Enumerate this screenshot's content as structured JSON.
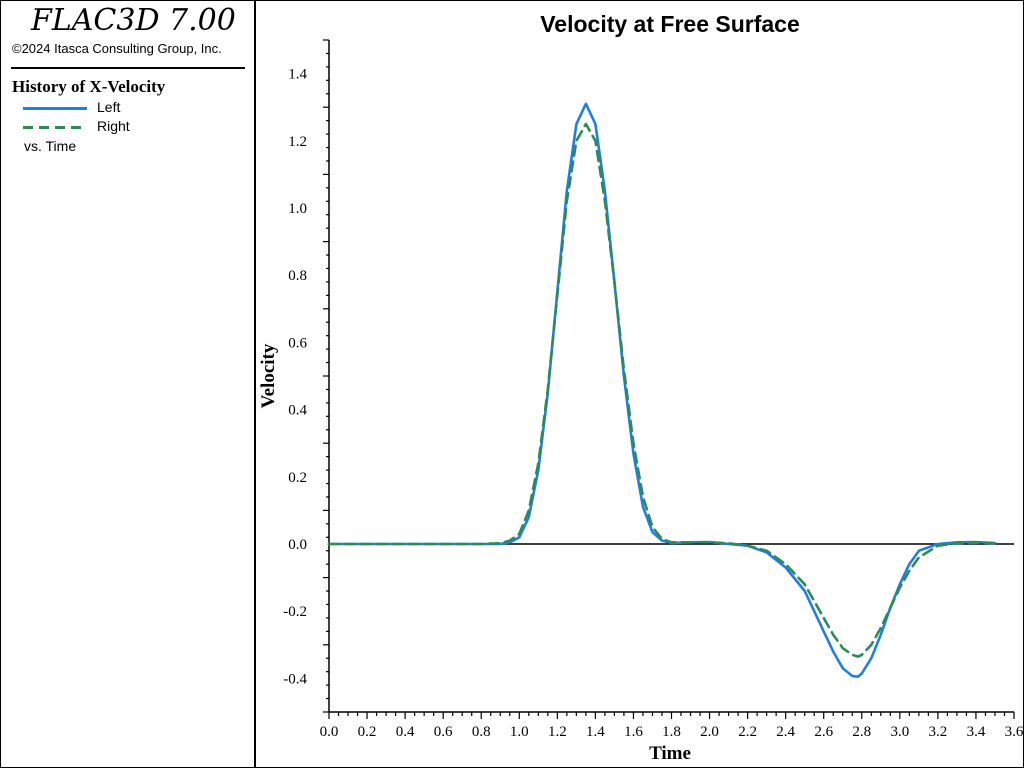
{
  "app": {
    "title": "FLAC3D 7.00",
    "copyright": "©2024 Itasca Consulting Group, Inc."
  },
  "legend": {
    "heading": "History of X-Velocity",
    "items": [
      {
        "label": "Left",
        "color": "#1f7fe0",
        "style": "solid"
      },
      {
        "label": "Right",
        "color": "#2e8b57",
        "style": "dashed"
      }
    ],
    "footer": "vs. Time"
  },
  "chart_data": {
    "type": "line",
    "title": "Velocity at Free Surface",
    "xlabel": "Time",
    "ylabel": "Velocity",
    "xlim": [
      0.0,
      3.6
    ],
    "ylim": [
      -0.5,
      1.5
    ],
    "xticks": [
      "0.0",
      "0.2",
      "0.4",
      "0.6",
      "0.8",
      "1.0",
      "1.2",
      "1.4",
      "1.6",
      "1.8",
      "2.0",
      "2.2",
      "2.4",
      "2.6",
      "2.8",
      "3.0",
      "3.2",
      "3.4",
      "3.6"
    ],
    "yticks": [
      "-0.4",
      "-0.2",
      "0.0",
      "0.2",
      "0.4",
      "0.6",
      "0.8",
      "1.0",
      "1.2",
      "1.4"
    ],
    "zero_line": true,
    "grid": false,
    "series": [
      {
        "name": "Left",
        "color": "#1f7fe0",
        "style": "solid",
        "x": [
          0.0,
          0.2,
          0.4,
          0.6,
          0.8,
          0.9,
          0.95,
          1.0,
          1.05,
          1.1,
          1.15,
          1.2,
          1.25,
          1.3,
          1.35,
          1.4,
          1.45,
          1.5,
          1.55,
          1.6,
          1.65,
          1.7,
          1.75,
          1.8,
          1.9,
          2.0,
          2.1,
          2.2,
          2.3,
          2.4,
          2.5,
          2.6,
          2.65,
          2.7,
          2.75,
          2.78,
          2.8,
          2.85,
          2.9,
          2.95,
          3.0,
          3.05,
          3.1,
          3.2,
          3.3,
          3.4,
          3.5
        ],
        "y": [
          0.0,
          0.0,
          0.0,
          0.0,
          0.0,
          0.0,
          0.005,
          0.02,
          0.08,
          0.22,
          0.45,
          0.75,
          1.05,
          1.25,
          1.31,
          1.25,
          1.05,
          0.78,
          0.5,
          0.27,
          0.11,
          0.035,
          0.01,
          0.003,
          0.005,
          0.006,
          0.0,
          -0.005,
          -0.025,
          -0.07,
          -0.14,
          -0.26,
          -0.32,
          -0.37,
          -0.393,
          -0.395,
          -0.385,
          -0.34,
          -0.27,
          -0.19,
          -0.12,
          -0.06,
          -0.02,
          0.0,
          0.005,
          0.006,
          0.003
        ]
      },
      {
        "name": "Right",
        "color": "#2e8b57",
        "style": "dashed",
        "x": [
          0.0,
          0.2,
          0.4,
          0.6,
          0.8,
          0.9,
          0.95,
          1.0,
          1.05,
          1.1,
          1.15,
          1.2,
          1.25,
          1.3,
          1.35,
          1.4,
          1.45,
          1.5,
          1.55,
          1.6,
          1.65,
          1.7,
          1.75,
          1.8,
          1.9,
          2.0,
          2.1,
          2.2,
          2.3,
          2.4,
          2.5,
          2.6,
          2.65,
          2.7,
          2.75,
          2.78,
          2.8,
          2.85,
          2.9,
          2.95,
          3.0,
          3.05,
          3.1,
          3.2,
          3.3,
          3.4,
          3.5
        ],
        "y": [
          0.0,
          0.0,
          0.0,
          0.0,
          0.0,
          0.002,
          0.01,
          0.03,
          0.1,
          0.24,
          0.46,
          0.74,
          1.02,
          1.2,
          1.25,
          1.2,
          1.02,
          0.78,
          0.52,
          0.3,
          0.14,
          0.05,
          0.015,
          0.005,
          0.005,
          0.005,
          0.002,
          -0.005,
          -0.02,
          -0.06,
          -0.12,
          -0.22,
          -0.27,
          -0.31,
          -0.33,
          -0.335,
          -0.33,
          -0.3,
          -0.25,
          -0.19,
          -0.13,
          -0.08,
          -0.04,
          -0.005,
          0.002,
          0.004,
          0.002
        ]
      }
    ]
  }
}
